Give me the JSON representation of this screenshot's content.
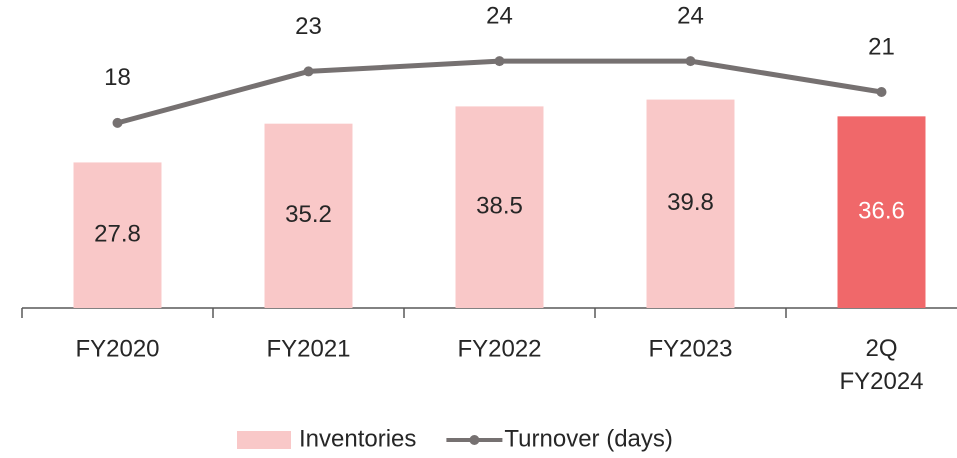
{
  "chart_data": {
    "type": "bar",
    "categories": [
      "FY2020",
      "FY2021",
      "FY2022",
      "FY2023",
      "2Q\nFY2024"
    ],
    "series": [
      {
        "name": "Inventories",
        "type": "bar",
        "color": "#f9c8c8",
        "colors": [
          "#f9c8c8",
          "#f9c8c8",
          "#f9c8c8",
          "#f9c8c8",
          "#f0686a"
        ],
        "label_colors": [
          "#262626",
          "#262626",
          "#262626",
          "#262626",
          "#ffffff"
        ],
        "values": [
          27.8,
          35.2,
          38.5,
          39.8,
          36.6
        ]
      },
      {
        "name": "Turnover (days)",
        "type": "line",
        "color": "#767171",
        "axis": "y2",
        "values": [
          18,
          23,
          24,
          24,
          21
        ]
      }
    ],
    "ylim": [
      0,
      55
    ],
    "y2lim": [
      0,
      28
    ],
    "legend": "bottom"
  }
}
